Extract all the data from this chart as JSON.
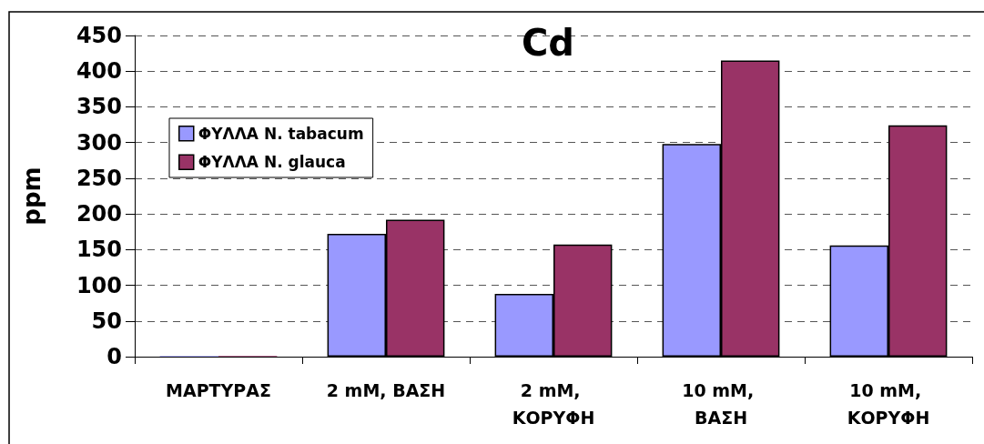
{
  "chart_data": {
    "type": "bar",
    "title": "Cd",
    "ylabel": "ppm",
    "categories": [
      "ΜΑΡΤΥΡΑΣ",
      "2 mM, ΒΑΣΗ",
      "2 mM, ΚΟΡΥΦΗ",
      "10 mM, ΒΑΣΗ",
      "10 mM, ΚΟΡΥΦΗ"
    ],
    "series": [
      {
        "name": "ΦΥΛΛΑ N. tabacum",
        "color": "#9999ff",
        "values": [
          1,
          172,
          88,
          298,
          156
        ]
      },
      {
        "name": "ΦΥΛΛΑ N. glauca",
        "color": "#993366",
        "values": [
          1,
          192,
          157,
          415,
          324
        ]
      }
    ],
    "ylim": [
      0,
      450
    ],
    "yticks": [
      0,
      50,
      100,
      150,
      200,
      250,
      300,
      350,
      400,
      450
    ],
    "grid": "y",
    "legend": "top left"
  }
}
